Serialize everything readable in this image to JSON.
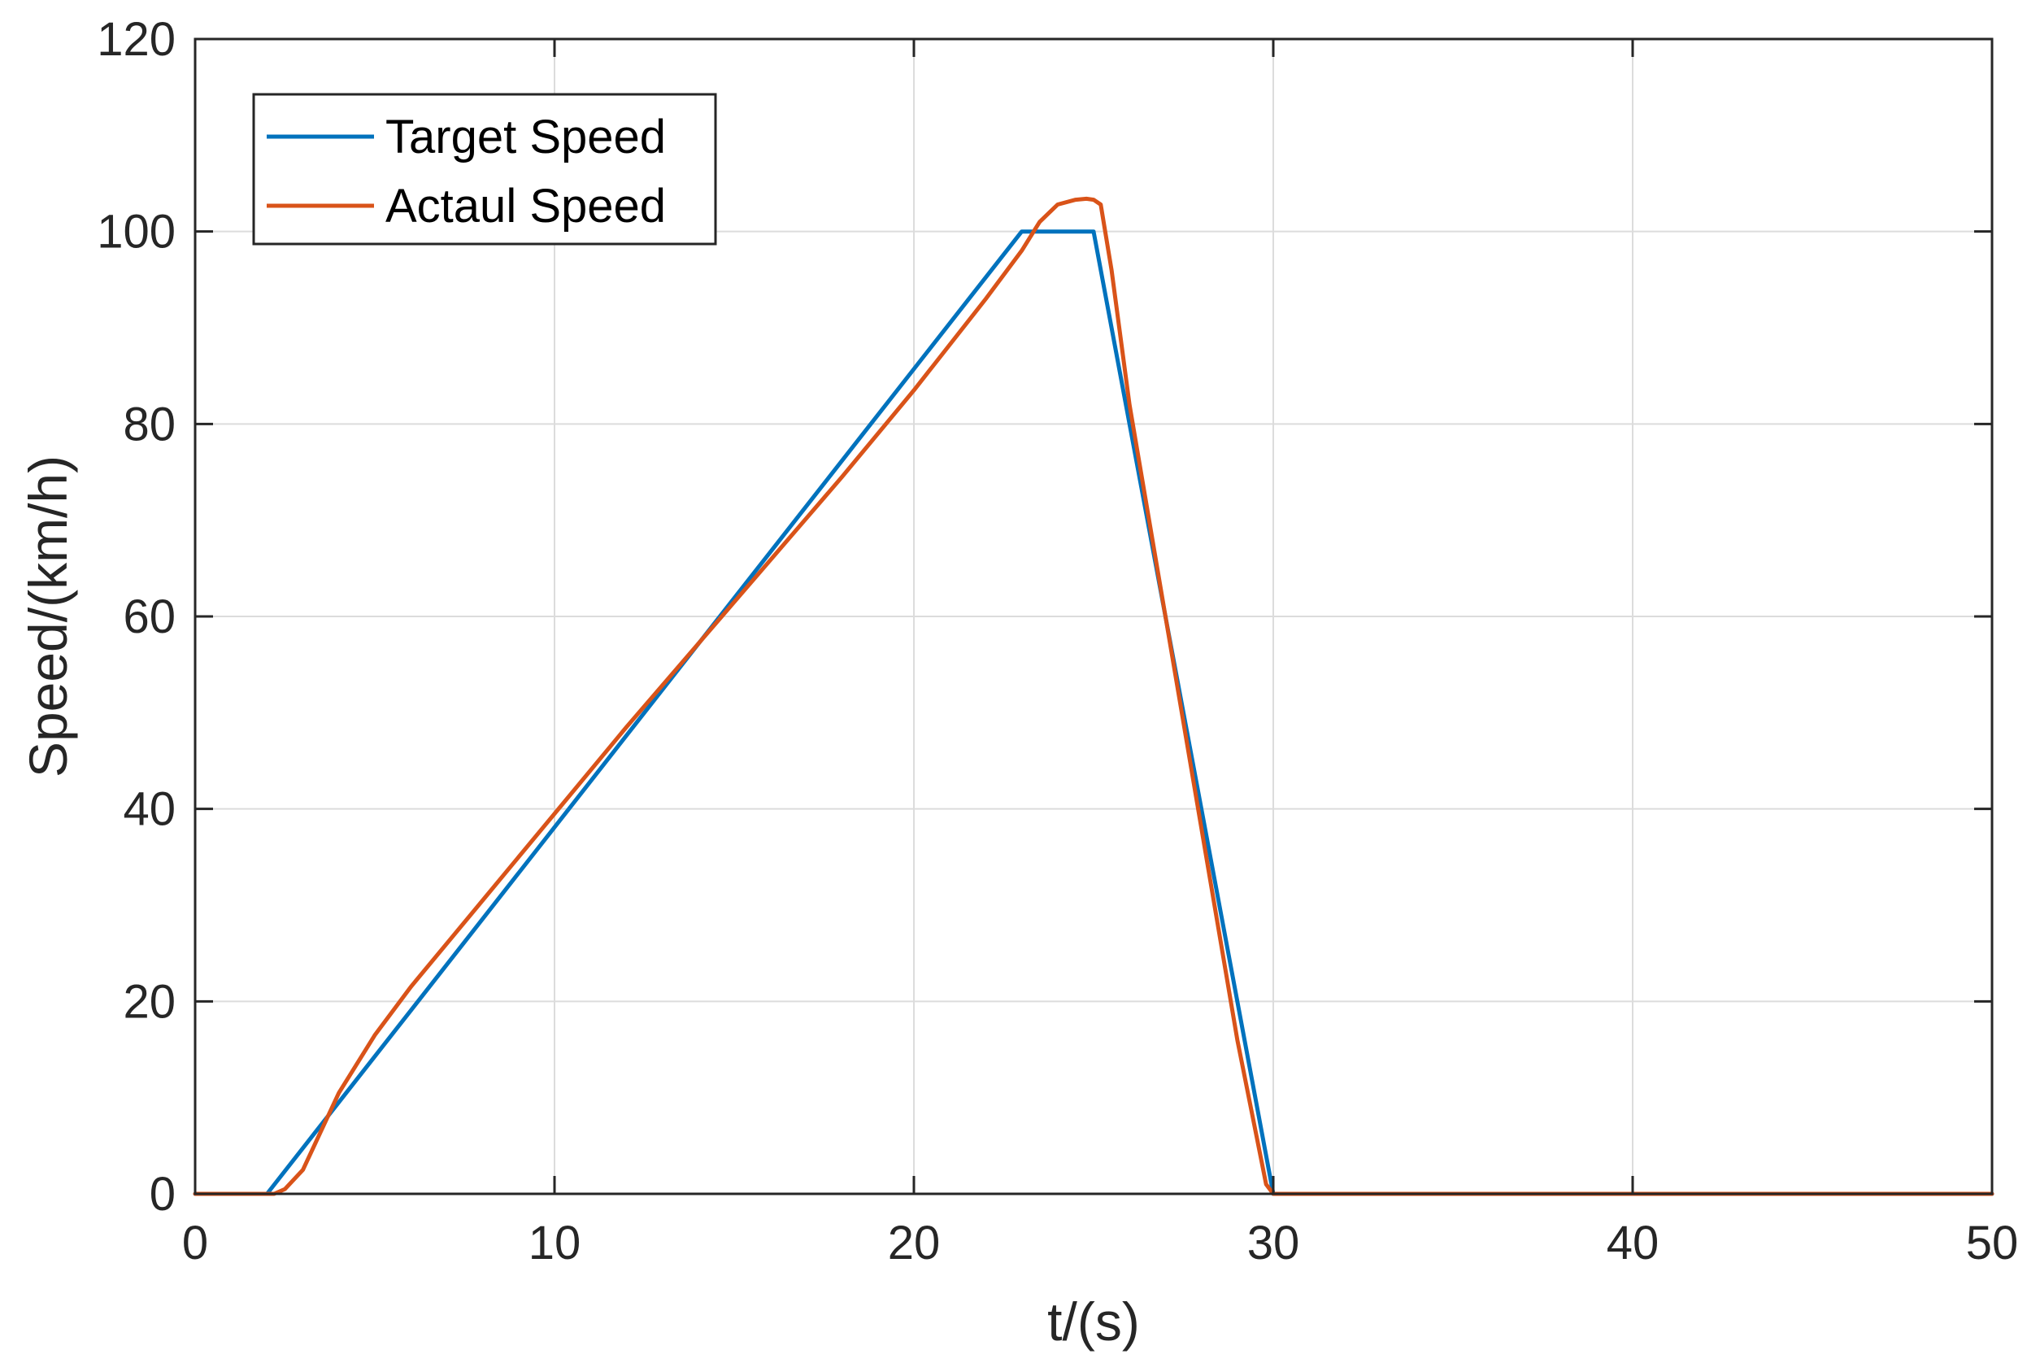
{
  "chart_data": {
    "type": "line",
    "title": "",
    "xlabel": "t/(s)",
    "ylabel": "Speed/(km/h)",
    "xlim": [
      0,
      50
    ],
    "ylim": [
      0,
      120
    ],
    "xticks": [
      "0",
      "10",
      "20",
      "30",
      "40",
      "50"
    ],
    "yticks": [
      "0",
      "20",
      "40",
      "60",
      "80",
      "100",
      "120"
    ],
    "grid": true,
    "legend_position": "top-left",
    "series": [
      {
        "name": "Target Speed",
        "color": "#0072BD",
        "x": [
          0,
          2,
          23,
          25,
          30,
          50
        ],
        "y": [
          0,
          0,
          100,
          100,
          0,
          0
        ]
      },
      {
        "name": "Actaul Speed",
        "color": "#D95319",
        "x": [
          0,
          2.2,
          2.5,
          3,
          3.5,
          4,
          4.5,
          5,
          6,
          8,
          10,
          12,
          15,
          18,
          20,
          22,
          23,
          23.5,
          24,
          24.5,
          24.8,
          25,
          25.2,
          25.5,
          26,
          27,
          28,
          29,
          29.8,
          30,
          50
        ],
        "y": [
          0,
          0,
          0.5,
          2.5,
          6.5,
          10.5,
          13.5,
          16.5,
          21.5,
          30.5,
          39.5,
          48.5,
          61.5,
          74.5,
          83.5,
          93,
          98,
          101,
          102.8,
          103.3,
          103.4,
          103.3,
          102.8,
          96,
          82,
          60,
          38,
          16,
          1,
          0,
          0
        ]
      }
    ]
  }
}
